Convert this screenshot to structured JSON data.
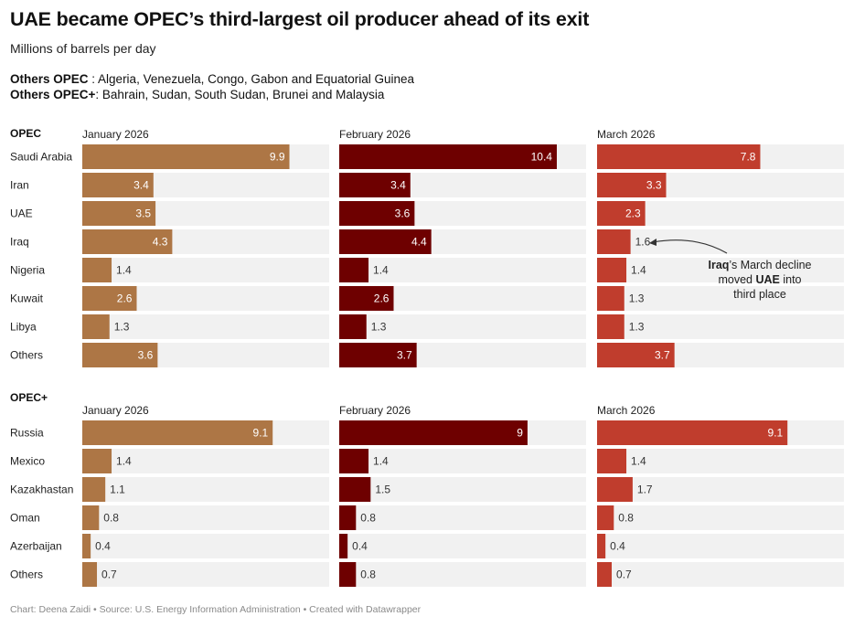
{
  "title": "UAE became OPEC’s third-largest oil producer ahead of its exit",
  "subtitle": "Millions of barrels per day",
  "notes": [
    {
      "label": "Others OPEC",
      "sep": " : ",
      "text": "Algeria, Venezuela, Congo, Gabon and Equatorial Guinea"
    },
    {
      "label": "Others OPEC+",
      "sep": ": ",
      "text": "Bahrain, Sudan, South Sudan, Brunei and Malaysia"
    }
  ],
  "footer": "Chart: Deena Zaidi • Source: U.S. Energy Information Administration • Created with Datawrapper",
  "colors": {
    "January 2026": "#ad7645",
    "February 2026": "#6e0000",
    "March 2026": "#c03d2d",
    "track": "#f1f1f1",
    "label_inside": "#ffffff",
    "label_outside": "#333333"
  },
  "annotation": {
    "text_runs": [
      [
        {
          "t": "Iraq",
          "b": true
        },
        {
          "t": "’s March decline",
          "b": false
        }
      ],
      [
        {
          "t": "moved ",
          "b": false
        },
        {
          "t": "UAE",
          "b": true
        },
        {
          "t": " into",
          "b": false
        }
      ],
      [
        {
          "t": "third place",
          "b": false
        }
      ]
    ]
  },
  "chart_data": [
    {
      "type": "bar",
      "title": "OPEC",
      "columns": [
        "January 2026",
        "February 2026",
        "March 2026"
      ],
      "categories": [
        "Saudi Arabia",
        "Iran",
        "UAE",
        "Iraq",
        "Nigeria",
        "Kuwait",
        "Libya",
        "Others"
      ],
      "series": [
        {
          "name": "January 2026",
          "values": [
            9.9,
            3.4,
            3.5,
            4.3,
            1.4,
            2.6,
            1.3,
            3.6
          ]
        },
        {
          "name": "February 2026",
          "values": [
            10.4,
            3.4,
            3.6,
            4.4,
            1.4,
            2.6,
            1.3,
            3.7
          ]
        },
        {
          "name": "March 2026",
          "values": [
            7.8,
            3.3,
            2.3,
            1.6,
            1.4,
            1.3,
            1.3,
            3.7
          ]
        }
      ],
      "xlim": [
        0,
        11.8
      ]
    },
    {
      "type": "bar",
      "title": "OPEC+",
      "columns": [
        "January 2026",
        "February 2026",
        "March 2026"
      ],
      "categories": [
        "Russia",
        "Mexico",
        "Kazakhastan",
        "Oman",
        "Azerbaijan",
        "Others"
      ],
      "series": [
        {
          "name": "January 2026",
          "values": [
            9.1,
            1.4,
            1.1,
            0.8,
            0.4,
            0.7
          ]
        },
        {
          "name": "February 2026",
          "values": [
            9,
            1.4,
            1.5,
            0.8,
            0.4,
            0.8
          ]
        },
        {
          "name": "March 2026",
          "values": [
            9.1,
            1.4,
            1.7,
            0.8,
            0.4,
            0.7
          ]
        }
      ],
      "xlim": [
        0,
        11.8
      ]
    }
  ]
}
